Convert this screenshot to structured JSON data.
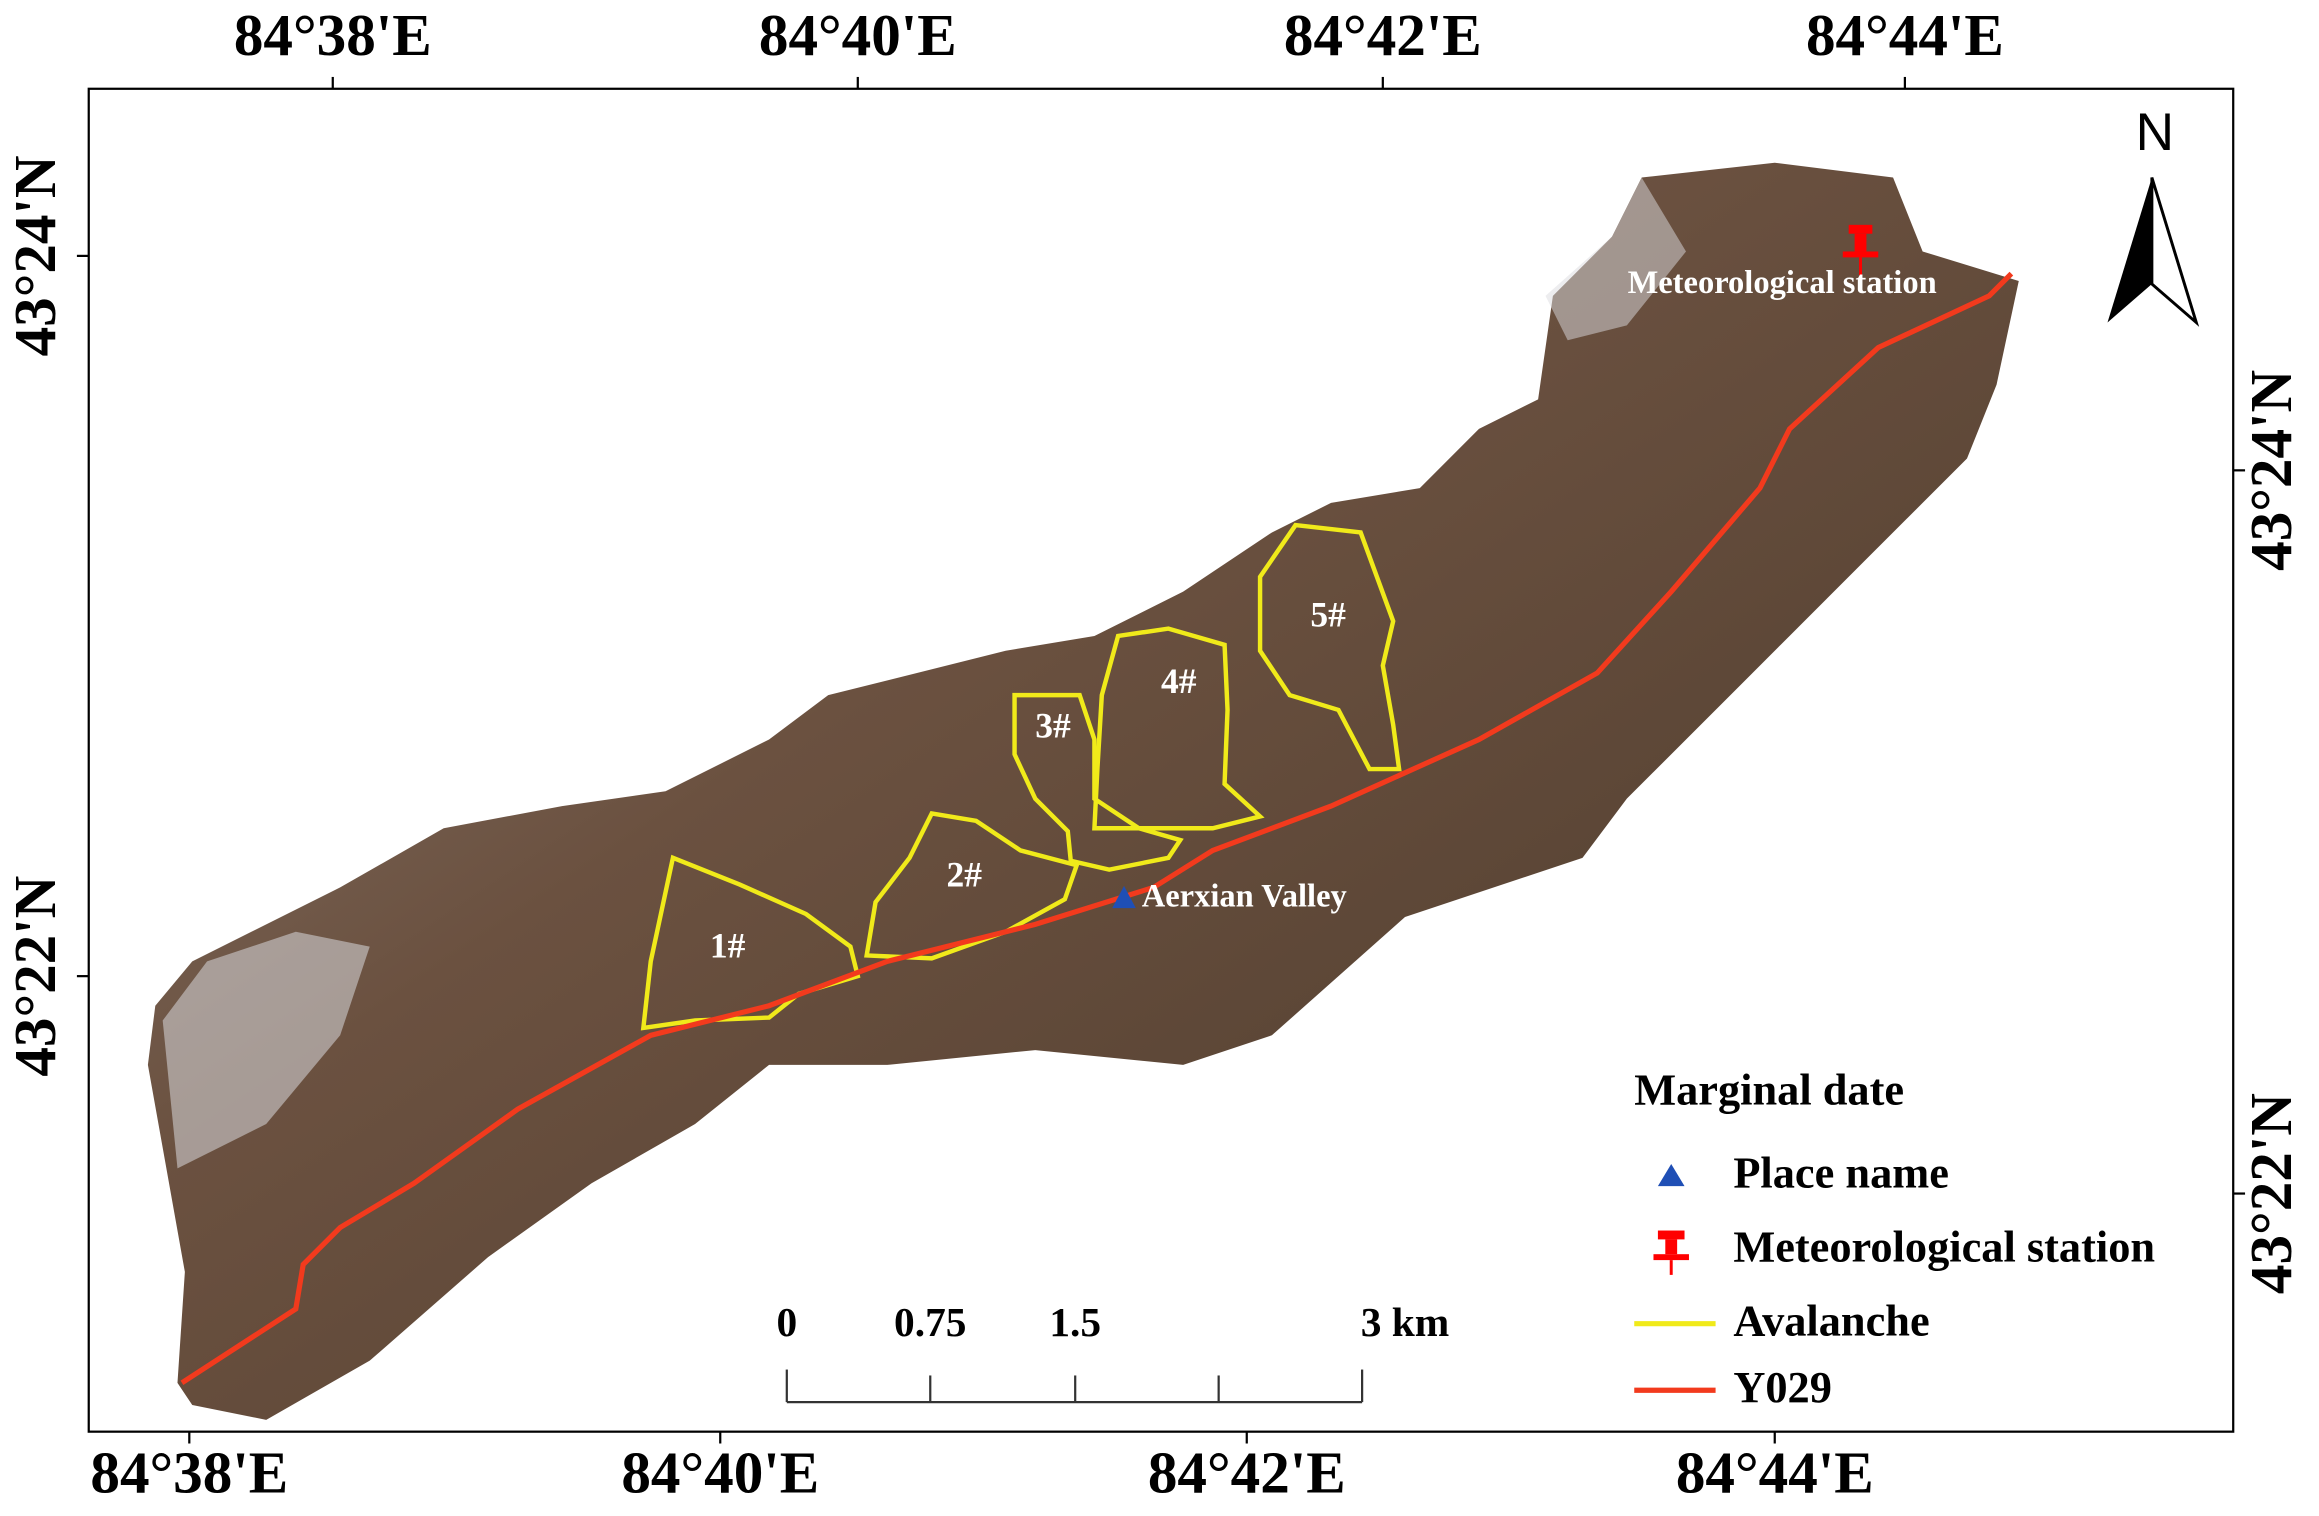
{
  "axes": {
    "top": [
      "84°38'E",
      "84°40'E",
      "84°42'E",
      "84°44'E"
    ],
    "bottom": [
      "84°38'E",
      "84°40'E",
      "84°42'E",
      "84°44'E"
    ],
    "left": [
      "43°24'N",
      "43°22'N"
    ],
    "right": [
      "43°24'N",
      "43°22'N"
    ]
  },
  "north": "N",
  "places": [
    "Aerxian Valley",
    "Meteorological station"
  ],
  "avalanches": [
    "1#",
    "2#",
    "3#",
    "4#",
    "5#"
  ],
  "legend": {
    "title": "Marginal date",
    "items": [
      "Place name",
      "Meteorological station",
      "Avalanche",
      "Y029"
    ]
  },
  "scale_bar": [
    "0",
    "0.75",
    "1.5",
    "3 km"
  ]
}
